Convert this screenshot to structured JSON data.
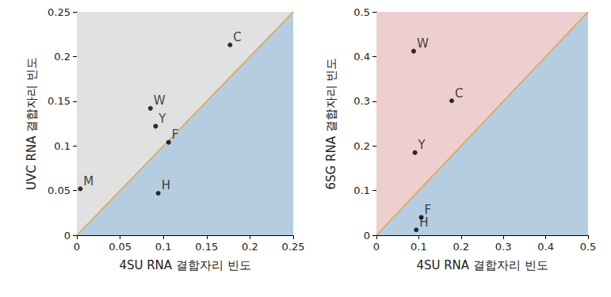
{
  "chart_data": [
    {
      "type": "scatter",
      "x_label": "4SU RNA 결합자리 빈도",
      "y_label": "UVC RNA 결합자리 빈도",
      "xlim": [
        0,
        0.25
      ],
      "xticks": [
        0,
        0.05,
        0.1,
        0.15,
        0.2,
        0.25
      ],
      "ylim": [
        0,
        0.25
      ],
      "yticks": [
        0,
        0.05,
        0.1,
        0.15,
        0.2,
        0.25
      ],
      "grid": false,
      "series": [
        {
          "type": "area",
          "color": "#e1e1e1",
          "x": [
            0,
            0.25
          ],
          "values": [
            0.25,
            0.25
          ]
        },
        {
          "type": "area",
          "color": "#b5cde0",
          "x": [
            0,
            0.25
          ],
          "values": [
            0,
            0.25
          ]
        },
        {
          "type": "line",
          "color": "#e5a33b",
          "x": [
            0,
            0.25
          ],
          "values": [
            0,
            0.25
          ]
        },
        {
          "type": "scatter",
          "color": "#000000",
          "marker": "circle",
          "x": [
            0.177,
            0.085,
            0.091,
            0.106,
            0.004,
            0.094
          ],
          "values": [
            0.213,
            0.142,
            0.122,
            0.104,
            0.052,
            0.047
          ],
          "labels": [
            "C",
            "W",
            "Y",
            "F",
            "M",
            "H"
          ]
        }
      ]
    },
    {
      "type": "scatter",
      "x_label": "4SU RNA 결합자리 빈도",
      "y_label": "6SG RNA 결합자리 빈도",
      "xlim": [
        0,
        0.5
      ],
      "xticks": [
        0,
        0.1,
        0.2,
        0.3,
        0.4,
        0.5
      ],
      "ylim": [
        0,
        0.5
      ],
      "yticks": [
        0,
        0.1,
        0.2,
        0.3,
        0.4,
        0.5
      ],
      "grid": false,
      "series": [
        {
          "type": "area",
          "color": "#eecfcf",
          "x": [
            0,
            0.5
          ],
          "values": [
            0.5,
            0.5
          ]
        },
        {
          "type": "area",
          "color": "#b5cde0",
          "x": [
            0,
            0.5
          ],
          "values": [
            0,
            0.5
          ]
        },
        {
          "type": "line",
          "color": "#e5a33b",
          "x": [
            0,
            0.5
          ],
          "values": [
            0,
            0.5
          ]
        },
        {
          "type": "scatter",
          "color": "#000000",
          "marker": "circle",
          "x": [
            0.088,
            0.178,
            0.091,
            0.106,
            0.094
          ],
          "values": [
            0.412,
            0.301,
            0.185,
            0.04,
            0.012
          ],
          "labels": [
            "W",
            "C",
            "Y",
            "F",
            "H"
          ]
        }
      ]
    }
  ]
}
